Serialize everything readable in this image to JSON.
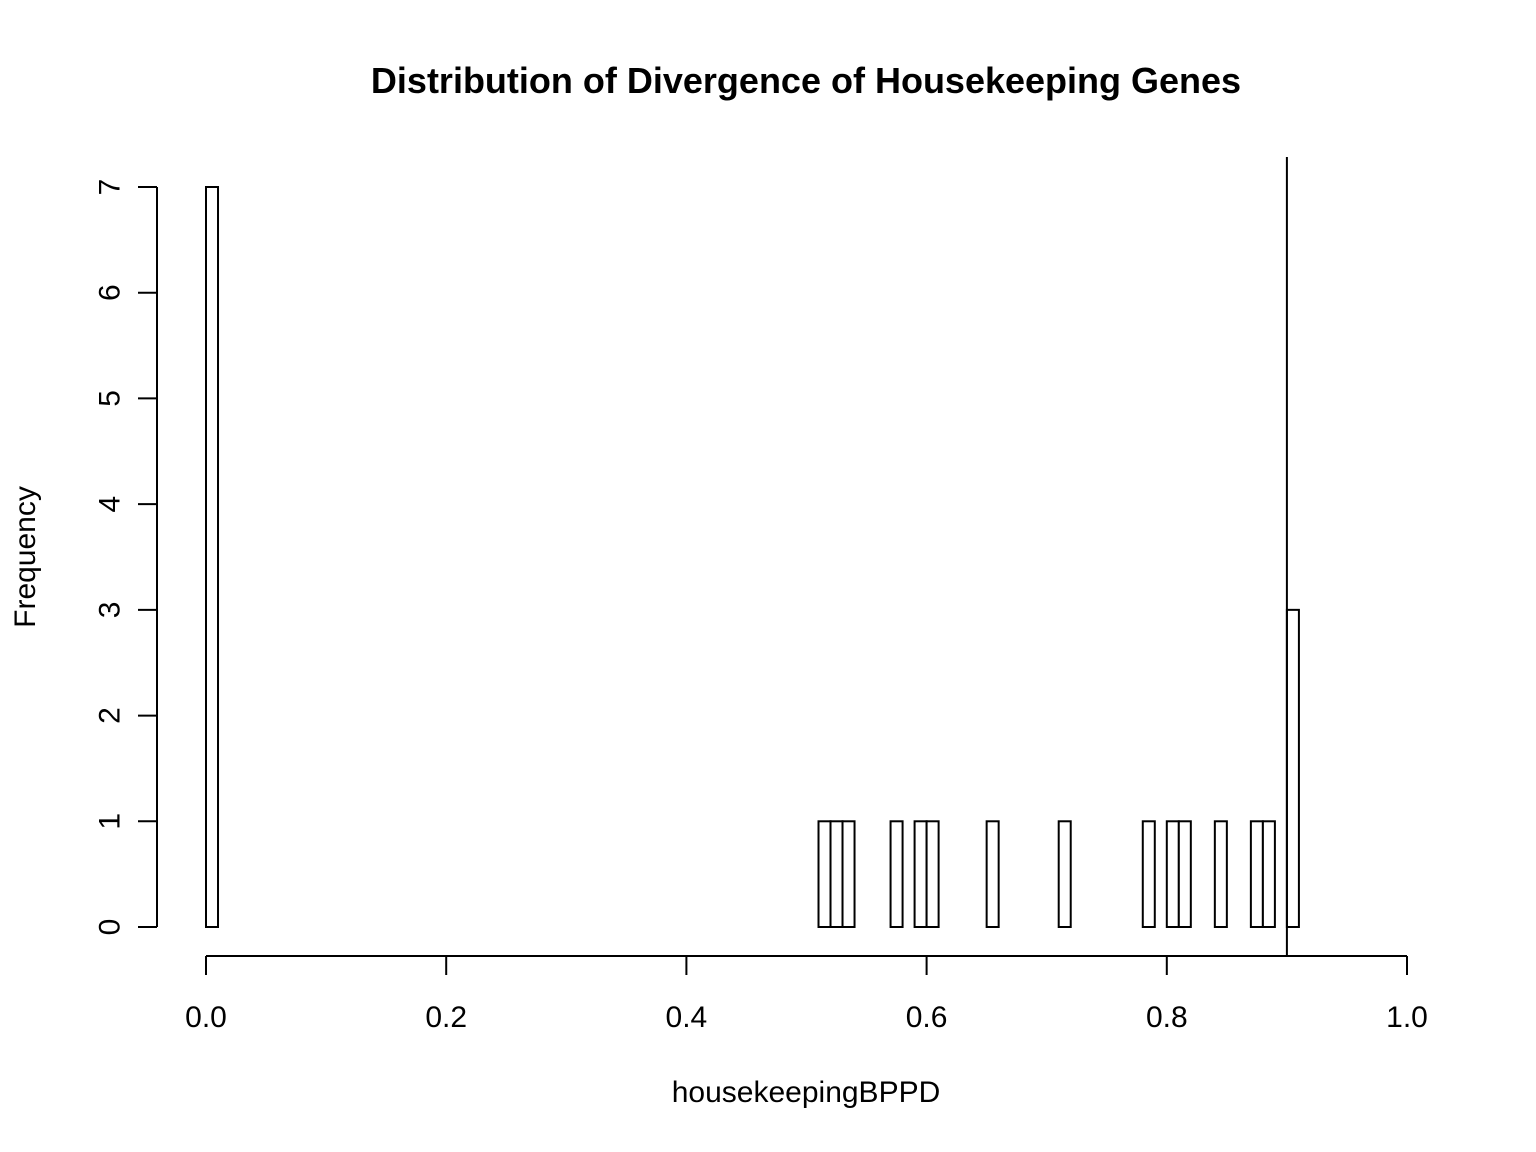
{
  "chart_data": {
    "type": "bar",
    "title": "Distribution of Divergence of Housekeeping Genes",
    "xlabel": "housekeepingBPPD",
    "ylabel": "Frequency",
    "xlim": [
      0,
      1
    ],
    "ylim": [
      0,
      7
    ],
    "x_ticks": [
      0.0,
      0.2,
      0.4,
      0.6,
      0.8,
      1.0
    ],
    "x_tick_labels": [
      "0.0",
      "0.2",
      "0.4",
      "0.6",
      "0.8",
      "1.0"
    ],
    "y_ticks": [
      0,
      1,
      2,
      3,
      4,
      5,
      6,
      7
    ],
    "y_tick_labels": [
      "0",
      "1",
      "2",
      "3",
      "4",
      "5",
      "6",
      "7"
    ],
    "bin_range": [
      0.0,
      0.91
    ],
    "bin_width": 0.01,
    "bins": [
      {
        "start": 0.0,
        "end": 0.01,
        "count": 7
      },
      {
        "start": 0.51,
        "end": 0.52,
        "count": 1
      },
      {
        "start": 0.52,
        "end": 0.53,
        "count": 1
      },
      {
        "start": 0.53,
        "end": 0.54,
        "count": 1
      },
      {
        "start": 0.57,
        "end": 0.58,
        "count": 1
      },
      {
        "start": 0.59,
        "end": 0.6,
        "count": 1
      },
      {
        "start": 0.6,
        "end": 0.61,
        "count": 1
      },
      {
        "start": 0.65,
        "end": 0.66,
        "count": 1
      },
      {
        "start": 0.71,
        "end": 0.72,
        "count": 1
      },
      {
        "start": 0.78,
        "end": 0.79,
        "count": 1
      },
      {
        "start": 0.8,
        "end": 0.81,
        "count": 1
      },
      {
        "start": 0.81,
        "end": 0.82,
        "count": 1
      },
      {
        "start": 0.84,
        "end": 0.85,
        "count": 1
      },
      {
        "start": 0.87,
        "end": 0.88,
        "count": 1
      },
      {
        "start": 0.88,
        "end": 0.89,
        "count": 1
      },
      {
        "start": 0.9,
        "end": 0.91,
        "count": 3
      }
    ],
    "reference_line_x": 0.9,
    "grid": false,
    "legend": "none"
  }
}
